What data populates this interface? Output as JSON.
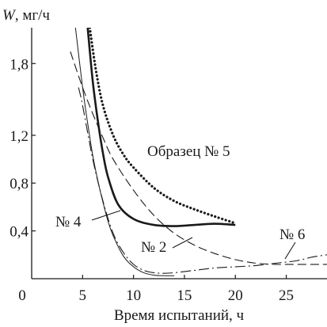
{
  "chart_data": {
    "type": "line",
    "ylabel_var": "W",
    "ylabel_unit": ", мг/ч",
    "xlabel": "Время испытаний, ч",
    "xlim": [
      0,
      29
    ],
    "ylim": [
      0,
      2.1
    ],
    "x_ticks": [
      {
        "value": 0,
        "label": "0"
      },
      {
        "value": 5,
        "label": "5"
      },
      {
        "value": 10,
        "label": "10"
      },
      {
        "value": 15,
        "label": "15"
      },
      {
        "value": 20,
        "label": "20"
      },
      {
        "value": 25,
        "label": "25"
      }
    ],
    "y_ticks": [
      {
        "value": 0.4,
        "label": "0,4"
      },
      {
        "value": 0.8,
        "label": "0,8"
      },
      {
        "value": 1.2,
        "label": "1,2"
      },
      {
        "value": 1.8,
        "label": "1,8"
      }
    ],
    "grid": false,
    "series": [
      {
        "name": "Образец № 5",
        "style": "dotted",
        "x": [
          5.7,
          6.3,
          7.0,
          8.0,
          9.0,
          10.0,
          12.0,
          14.0,
          16.0,
          18.0,
          19.8
        ],
        "y": [
          2.1,
          1.75,
          1.45,
          1.2,
          1.04,
          0.93,
          0.76,
          0.65,
          0.58,
          0.52,
          0.47
        ]
      },
      {
        "name": "№ 4",
        "style": "solid-thick",
        "x": [
          5.5,
          6.0,
          6.5,
          7.0,
          7.5,
          8.5,
          10.0,
          12.0,
          14.0,
          16.0,
          18.0,
          20.0
        ],
        "y": [
          2.1,
          1.65,
          1.32,
          1.05,
          0.85,
          0.62,
          0.5,
          0.45,
          0.44,
          0.45,
          0.46,
          0.45
        ]
      },
      {
        "name": "№ 2",
        "style": "dashed",
        "x": [
          3.8,
          5.0,
          6.0,
          7.0,
          8.0,
          10.0,
          12.0,
          14.0,
          16.0,
          18.0,
          20.0,
          22.0,
          24.0,
          26.0,
          28.0,
          29.0
        ],
        "y": [
          1.9,
          1.6,
          1.38,
          1.18,
          1.0,
          0.74,
          0.53,
          0.38,
          0.28,
          0.21,
          0.16,
          0.13,
          0.12,
          0.12,
          0.12,
          0.12
        ]
      },
      {
        "name": "№ 6",
        "style": "dash-dot",
        "x": [
          4.6,
          5.0,
          6.0,
          7.0,
          8.0,
          9.0,
          10.0,
          11.0,
          12.0,
          13.0,
          14.0,
          16.0,
          18.0,
          20.0,
          22.0,
          24.0,
          26.0,
          27.5,
          29.0
        ],
        "y": [
          1.6,
          1.45,
          1.0,
          0.65,
          0.38,
          0.22,
          0.12,
          0.07,
          0.05,
          0.045,
          0.05,
          0.07,
          0.09,
          0.1,
          0.11,
          0.13,
          0.15,
          0.18,
          0.2
        ]
      },
      {
        "name": "",
        "style": "solid-thin",
        "x": [
          4.3,
          5.0,
          5.5,
          6.0,
          6.5,
          7.0,
          7.5,
          8.0,
          9.0,
          10.0,
          11.0,
          12.0,
          13.0,
          14.0
        ],
        "y": [
          2.1,
          1.6,
          1.3,
          1.03,
          0.82,
          0.64,
          0.48,
          0.36,
          0.19,
          0.1,
          0.05,
          0.03,
          0.025,
          0.025
        ]
      }
    ],
    "annotations": [
      {
        "text": "Образец № 5",
        "series": "Образец № 5"
      },
      {
        "text": "№ 4",
        "series": "№ 4"
      },
      {
        "text": "№ 2",
        "series": "№ 2"
      },
      {
        "text": "№ 6",
        "series": "№ 6"
      }
    ]
  }
}
